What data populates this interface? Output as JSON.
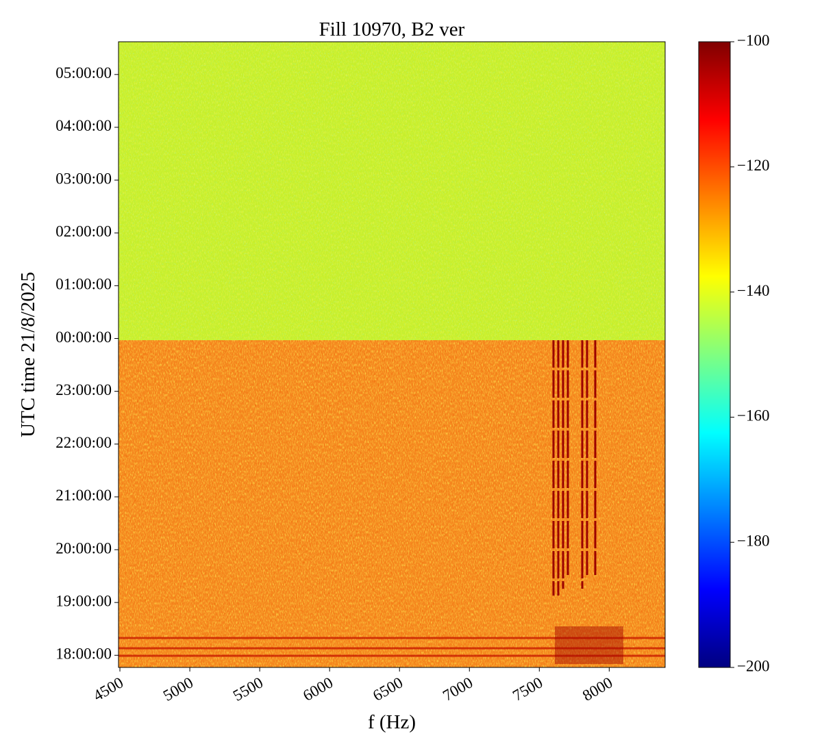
{
  "chart_data": {
    "type": "spectrogram",
    "title": "Fill 10970, B2 ver",
    "xlabel": "f (Hz)",
    "ylabel": "UTC time 21/8/2025",
    "xlim": [
      4490,
      8400
    ],
    "xticks": [
      4500,
      5000,
      5500,
      6000,
      6500,
      7000,
      7500,
      8000
    ],
    "ylim": [
      -6.23,
      5.62
    ],
    "yticks": [
      {
        "value": -6,
        "label": "18:00:00"
      },
      {
        "value": -5,
        "label": "19:00:00"
      },
      {
        "value": -4,
        "label": "20:00:00"
      },
      {
        "value": -3,
        "label": "21:00:00"
      },
      {
        "value": -2,
        "label": "22:00:00"
      },
      {
        "value": -1,
        "label": "23:00:00"
      },
      {
        "value": 0,
        "label": "00:00:00"
      },
      {
        "value": 1,
        "label": "01:00:00"
      },
      {
        "value": 2,
        "label": "02:00:00"
      },
      {
        "value": 3,
        "label": "03:00:00"
      },
      {
        "value": 4,
        "label": "04:00:00"
      },
      {
        "value": 5,
        "label": "05:00:00"
      }
    ],
    "colormap": "jet",
    "clim": [
      -200,
      -100
    ],
    "cticks": [
      {
        "value": -100,
        "label": "−100"
      },
      {
        "value": -120,
        "label": "−120"
      },
      {
        "value": -140,
        "label": "−140"
      },
      {
        "value": -160,
        "label": "−160"
      },
      {
        "value": -180,
        "label": "−180"
      },
      {
        "value": -200,
        "label": "−200"
      }
    ]
  }
}
